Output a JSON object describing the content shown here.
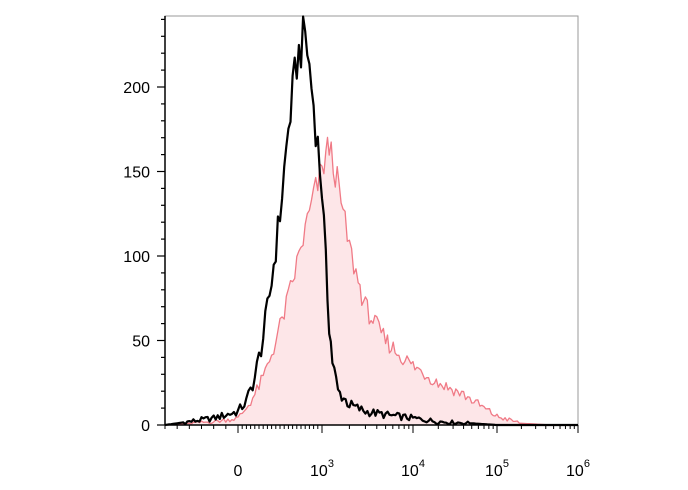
{
  "chart_data": {
    "type": "area",
    "title": "",
    "xlabel": "",
    "ylabel": "",
    "x_scale": "biexponential",
    "xlim": [
      -300,
      1000000
    ],
    "ylim": [
      0,
      240
    ],
    "y_ticks": [
      0,
      50,
      100,
      150,
      200
    ],
    "y_tick_labels": [
      "0",
      "50",
      "100",
      "150",
      "200"
    ],
    "x_ticks": [
      {
        "value": 0,
        "base": "0",
        "exp": ""
      },
      {
        "value": 1000,
        "base": "10",
        "exp": "3"
      },
      {
        "value": 10000,
        "base": "10",
        "exp": "4"
      },
      {
        "value": 100000,
        "base": "10",
        "exp": "5"
      },
      {
        "value": 1000000,
        "base": "10",
        "exp": "6"
      }
    ],
    "grid": false,
    "legend": "none",
    "series": [
      {
        "color": "#000000",
        "fill": "none",
        "points": [
          [
            -300,
            0
          ],
          [
            -200,
            2
          ],
          [
            -100,
            4
          ],
          [
            0,
            8
          ],
          [
            100,
            14
          ],
          [
            200,
            28
          ],
          [
            300,
            52
          ],
          [
            400,
            85
          ],
          [
            500,
            125
          ],
          [
            600,
            175
          ],
          [
            700,
            215
          ],
          [
            800,
            232
          ],
          [
            900,
            190
          ],
          [
            1000,
            140
          ],
          [
            1100,
            95
          ],
          [
            1200,
            60
          ],
          [
            1300,
            38
          ],
          [
            1500,
            20
          ],
          [
            2000,
            12
          ],
          [
            3000,
            8
          ],
          [
            5000,
            6
          ],
          [
            10000,
            4
          ],
          [
            20000,
            2
          ],
          [
            50000,
            1
          ],
          [
            100000,
            0
          ],
          [
            1000000,
            0
          ]
        ]
      },
      {
        "color": "#f07a86",
        "fill": "#fde6e8",
        "points": [
          [
            -300,
            0
          ],
          [
            -100,
            2
          ],
          [
            0,
            4
          ],
          [
            100,
            10
          ],
          [
            200,
            18
          ],
          [
            300,
            28
          ],
          [
            400,
            42
          ],
          [
            500,
            58
          ],
          [
            600,
            75
          ],
          [
            700,
            95
          ],
          [
            800,
            115
          ],
          [
            900,
            135
          ],
          [
            1000,
            150
          ],
          [
            1100,
            160
          ],
          [
            1200,
            165
          ],
          [
            1400,
            150
          ],
          [
            1700,
            125
          ],
          [
            2000,
            105
          ],
          [
            2500,
            85
          ],
          [
            3000,
            70
          ],
          [
            4000,
            58
          ],
          [
            5000,
            50
          ],
          [
            7000,
            42
          ],
          [
            10000,
            35
          ],
          [
            20000,
            25
          ],
          [
            40000,
            18
          ],
          [
            70000,
            10
          ],
          [
            100000,
            5
          ],
          [
            200000,
            1
          ],
          [
            500000,
            0
          ],
          [
            1000000,
            0
          ]
        ]
      }
    ]
  }
}
